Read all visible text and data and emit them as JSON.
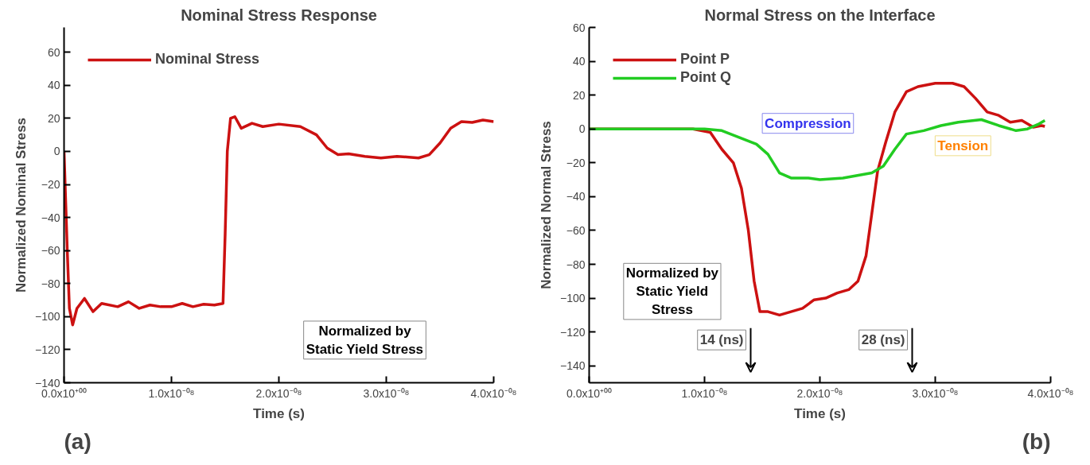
{
  "chart_data": [
    {
      "type": "line",
      "title": "Nominal Stress Response",
      "xlabel": "Time (s)",
      "ylabel": "Normalized Nominal Stress",
      "xlim": [
        0,
        4e-08
      ],
      "ylim": [
        -140,
        75
      ],
      "xticks": [
        {
          "value": 0,
          "label": "0.0x10⁺⁰⁰"
        },
        {
          "value": 1e-08,
          "label": "1.0x10⁻⁰⁸"
        },
        {
          "value": 2e-08,
          "label": "2.0x10⁻⁰⁸"
        },
        {
          "value": 3e-08,
          "label": "3.0x10⁻⁰⁸"
        },
        {
          "value": 4e-08,
          "label": "4.0x10⁻⁰⁸"
        }
      ],
      "yticks": [
        -140,
        -120,
        -100,
        -80,
        -60,
        -40,
        -20,
        0,
        20,
        40,
        60
      ],
      "grid": false,
      "legend": "top left",
      "series": [
        {
          "name": "Nominal Stress",
          "color": "#cc1111",
          "x": [
            0,
            3e-10,
            5e-10,
            8e-10,
            1.2e-09,
            1.9e-09,
            2.7e-09,
            3.5e-09,
            5e-09,
            6e-09,
            7e-09,
            8e-09,
            9e-09,
            1e-08,
            1.1e-08,
            1.2e-08,
            1.3e-08,
            1.4e-08,
            1.48e-08,
            1.5e-08,
            1.52e-08,
            1.55e-08,
            1.59e-08,
            1.65e-08,
            1.75e-08,
            1.85e-08,
            2e-08,
            2.2e-08,
            2.35e-08,
            2.45e-08,
            2.55e-08,
            2.65e-08,
            2.8e-08,
            2.95e-08,
            3.1e-08,
            3.3e-08,
            3.4e-08,
            3.5e-08,
            3.6e-08,
            3.7e-08,
            3.8e-08,
            3.9e-08,
            4e-08
          ],
          "values": [
            0,
            -60,
            -95,
            -105,
            -95,
            -89,
            -97,
            -92,
            -94,
            -91,
            -95,
            -93,
            -94,
            -94,
            -92,
            -94,
            -92.5,
            -93,
            -92,
            -50,
            0,
            20,
            21,
            14,
            17,
            15,
            16.5,
            15,
            10,
            2,
            -2,
            -1.5,
            -3,
            -4,
            -3,
            -4,
            -2,
            5,
            14,
            18,
            17.5,
            19,
            18
          ]
        }
      ],
      "annotations": [
        "Normalized by\nStatic Yield Stress",
        "(a)"
      ]
    },
    {
      "type": "line",
      "title": "Normal Stress on the Interface",
      "xlabel": "Time (s)",
      "ylabel": "Normalized Normal Stress",
      "xlim": [
        0,
        4e-08
      ],
      "ylim": [
        -150,
        60
      ],
      "xticks": [
        {
          "value": 0,
          "label": "0.0x10⁺⁰⁰"
        },
        {
          "value": 1e-08,
          "label": "1.0x10⁻⁰⁸"
        },
        {
          "value": 2e-08,
          "label": "2.0x10⁻⁰⁸"
        },
        {
          "value": 3e-08,
          "label": "3.0x10⁻⁰⁸"
        },
        {
          "value": 4e-08,
          "label": "4.0x10⁻⁰⁸"
        }
      ],
      "yticks": [
        -140,
        -120,
        -100,
        -80,
        -60,
        -40,
        -20,
        0,
        20,
        40,
        60
      ],
      "grid": false,
      "legend": "top left",
      "series": [
        {
          "name": "Point P",
          "color": "#cc1111",
          "x": [
            0,
            9e-09,
            1.05e-08,
            1.15e-08,
            1.25e-08,
            1.32e-08,
            1.38e-08,
            1.43e-08,
            1.48e-08,
            1.55e-08,
            1.65e-08,
            1.75e-08,
            1.85e-08,
            1.95e-08,
            2.05e-08,
            2.15e-08,
            2.25e-08,
            2.33e-08,
            2.4e-08,
            2.45e-08,
            2.5e-08,
            2.57e-08,
            2.65e-08,
            2.75e-08,
            2.85e-08,
            3e-08,
            3.15e-08,
            3.25e-08,
            3.35e-08,
            3.45e-08,
            3.55e-08,
            3.65e-08,
            3.75e-08,
            3.85e-08,
            3.92e-08,
            3.95e-08
          ],
          "values": [
            0,
            0,
            -2,
            -12,
            -20,
            -35,
            -60,
            -90,
            -108,
            -108,
            -110,
            -108,
            -106,
            -101,
            -100,
            -97,
            -95,
            -90,
            -75,
            -50,
            -25,
            -8,
            10,
            22,
            25,
            27,
            27,
            25,
            18,
            10,
            8,
            4,
            5,
            1,
            2,
            1.5
          ]
        },
        {
          "name": "Point Q",
          "color": "#22cc22",
          "x": [
            0,
            1e-08,
            1.15e-08,
            1.3e-08,
            1.45e-08,
            1.55e-08,
            1.65e-08,
            1.75e-08,
            1.9e-08,
            2e-08,
            2.2e-08,
            2.45e-08,
            2.55e-08,
            2.65e-08,
            2.75e-08,
            2.9e-08,
            3.05e-08,
            3.2e-08,
            3.4e-08,
            3.55e-08,
            3.7e-08,
            3.8e-08,
            3.9e-08,
            3.95e-08
          ],
          "values": [
            0,
            0,
            -1,
            -5,
            -9,
            -15,
            -26,
            -29,
            -29,
            -30,
            -29,
            -26,
            -22,
            -12,
            -3,
            -1,
            2,
            4,
            5.5,
            2,
            -1,
            0,
            3,
            5
          ]
        }
      ],
      "annotations": [
        "Compression",
        "Tension",
        "Normalized by\nStatic Yield\nStress",
        "14 (ns)",
        "28 (ns)",
        "(b)"
      ]
    }
  ]
}
